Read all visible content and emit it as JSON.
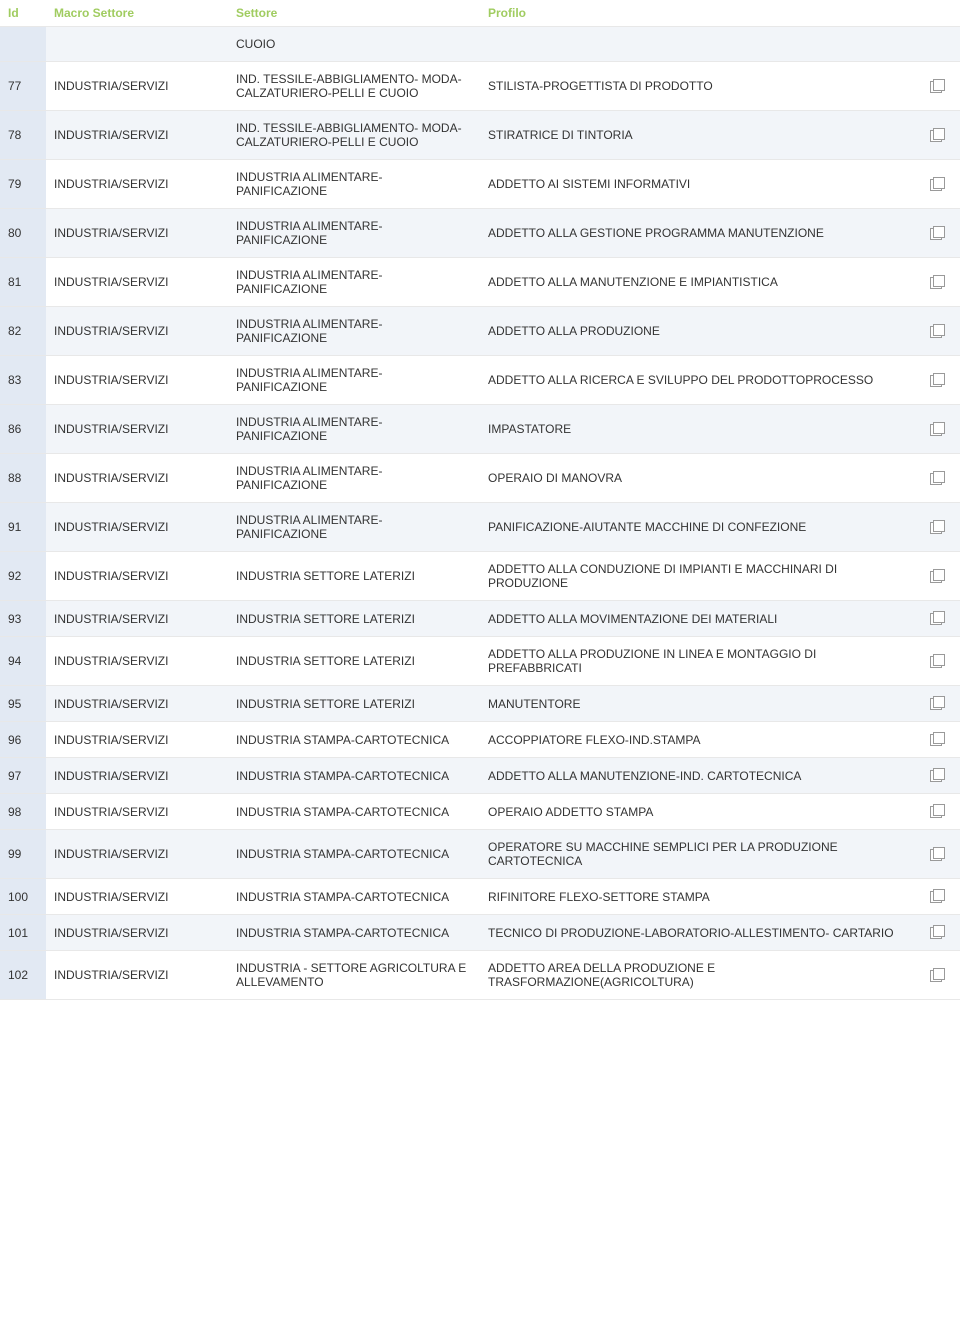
{
  "columns": {
    "id": "Id",
    "macro": "Macro Settore",
    "settore": "Settore",
    "profilo": "Profilo"
  },
  "rows": [
    {
      "id": "",
      "macro": "",
      "settore": "CUOIO",
      "profilo": "",
      "alt": true,
      "hasIcon": false
    },
    {
      "id": "77",
      "macro": "INDUSTRIA/SERVIZI",
      "settore": "IND. TESSILE-ABBIGLIAMENTO- MODA-CALZATURIERO-PELLI E CUOIO",
      "profilo": "STILISTA-PROGETTISTA DI PRODOTTO",
      "alt": false,
      "hasIcon": true
    },
    {
      "id": "78",
      "macro": "INDUSTRIA/SERVIZI",
      "settore": "IND. TESSILE-ABBIGLIAMENTO- MODA-CALZATURIERO-PELLI E CUOIO",
      "profilo": "STIRATRICE DI TINTORIA",
      "alt": true,
      "hasIcon": true
    },
    {
      "id": "79",
      "macro": "INDUSTRIA/SERVIZI",
      "settore": "INDUSTRIA ALIMENTARE-PANIFICAZIONE",
      "profilo": "ADDETTO AI SISTEMI INFORMATIVI",
      "alt": false,
      "hasIcon": true
    },
    {
      "id": "80",
      "macro": "INDUSTRIA/SERVIZI",
      "settore": "INDUSTRIA ALIMENTARE-PANIFICAZIONE",
      "profilo": "ADDETTO ALLA GESTIONE PROGRAMMA MANUTENZIONE",
      "alt": true,
      "hasIcon": true
    },
    {
      "id": "81",
      "macro": "INDUSTRIA/SERVIZI",
      "settore": "INDUSTRIA ALIMENTARE-PANIFICAZIONE",
      "profilo": "ADDETTO ALLA MANUTENZIONE E IMPIANTISTICA",
      "alt": false,
      "hasIcon": true
    },
    {
      "id": "82",
      "macro": "INDUSTRIA/SERVIZI",
      "settore": "INDUSTRIA ALIMENTARE-PANIFICAZIONE",
      "profilo": "ADDETTO ALLA PRODUZIONE",
      "alt": true,
      "hasIcon": true
    },
    {
      "id": "83",
      "macro": "INDUSTRIA/SERVIZI",
      "settore": "INDUSTRIA ALIMENTARE-PANIFICAZIONE",
      "profilo": "ADDETTO ALLA RICERCA E SVILUPPO DEL PRODOTTOPROCESSO",
      "alt": false,
      "hasIcon": true
    },
    {
      "id": "86",
      "macro": "INDUSTRIA/SERVIZI",
      "settore": "INDUSTRIA ALIMENTARE-PANIFICAZIONE",
      "profilo": "IMPASTATORE",
      "alt": true,
      "hasIcon": true
    },
    {
      "id": "88",
      "macro": "INDUSTRIA/SERVIZI",
      "settore": "INDUSTRIA ALIMENTARE-PANIFICAZIONE",
      "profilo": "OPERAIO DI MANOVRA",
      "alt": false,
      "hasIcon": true
    },
    {
      "id": "91",
      "macro": "INDUSTRIA/SERVIZI",
      "settore": "INDUSTRIA ALIMENTARE-PANIFICAZIONE",
      "profilo": "PANIFICAZIONE-AIUTANTE MACCHINE DI CONFEZIONE",
      "alt": true,
      "hasIcon": true
    },
    {
      "id": "92",
      "macro": "INDUSTRIA/SERVIZI",
      "settore": "INDUSTRIA SETTORE LATERIZI",
      "profilo": "ADDETTO ALLA CONDUZIONE DI IMPIANTI E MACCHINARI DI PRODUZIONE",
      "alt": false,
      "hasIcon": true
    },
    {
      "id": "93",
      "macro": "INDUSTRIA/SERVIZI",
      "settore": "INDUSTRIA SETTORE LATERIZI",
      "profilo": "ADDETTO ALLA MOVIMENTAZIONE DEI MATERIALI",
      "alt": true,
      "hasIcon": true
    },
    {
      "id": "94",
      "macro": "INDUSTRIA/SERVIZI",
      "settore": "INDUSTRIA SETTORE LATERIZI",
      "profilo": "ADDETTO ALLA PRODUZIONE IN LINEA E MONTAGGIO DI PREFABBRICATI",
      "alt": false,
      "hasIcon": true
    },
    {
      "id": "95",
      "macro": "INDUSTRIA/SERVIZI",
      "settore": "INDUSTRIA SETTORE LATERIZI",
      "profilo": "MANUTENTORE",
      "alt": true,
      "hasIcon": true
    },
    {
      "id": "96",
      "macro": "INDUSTRIA/SERVIZI",
      "settore": "INDUSTRIA STAMPA-CARTOTECNICA",
      "profilo": "ACCOPPIATORE FLEXO-IND.STAMPA",
      "alt": false,
      "hasIcon": true
    },
    {
      "id": "97",
      "macro": "INDUSTRIA/SERVIZI",
      "settore": "INDUSTRIA STAMPA-CARTOTECNICA",
      "profilo": "ADDETTO ALLA MANUTENZIONE-IND. CARTOTECNICA",
      "alt": true,
      "hasIcon": true
    },
    {
      "id": "98",
      "macro": "INDUSTRIA/SERVIZI",
      "settore": "INDUSTRIA STAMPA-CARTOTECNICA",
      "profilo": "OPERAIO ADDETTO STAMPA",
      "alt": false,
      "hasIcon": true
    },
    {
      "id": "99",
      "macro": "INDUSTRIA/SERVIZI",
      "settore": "INDUSTRIA STAMPA-CARTOTECNICA",
      "profilo": "OPERATORE SU MACCHINE SEMPLICI PER LA PRODUZIONE CARTOTECNICA",
      "alt": true,
      "hasIcon": true
    },
    {
      "id": "100",
      "macro": "INDUSTRIA/SERVIZI",
      "settore": "INDUSTRIA STAMPA-CARTOTECNICA",
      "profilo": "RIFINITORE FLEXO-SETTORE STAMPA",
      "alt": false,
      "hasIcon": true
    },
    {
      "id": "101",
      "macro": "INDUSTRIA/SERVIZI",
      "settore": "INDUSTRIA STAMPA-CARTOTECNICA",
      "profilo": "TECNICO DI PRODUZIONE-LABORATORIO-ALLESTIMENTO- CARTARIO",
      "alt": true,
      "hasIcon": true
    },
    {
      "id": "102",
      "macro": "INDUSTRIA/SERVIZI",
      "settore": "INDUSTRIA - SETTORE AGRICOLTURA E ALLEVAMENTO",
      "profilo": "ADDETTO AREA DELLA PRODUZIONE E TRASFORMAZIONE(AGRICOLTURA)",
      "alt": false,
      "hasIcon": true
    }
  ]
}
